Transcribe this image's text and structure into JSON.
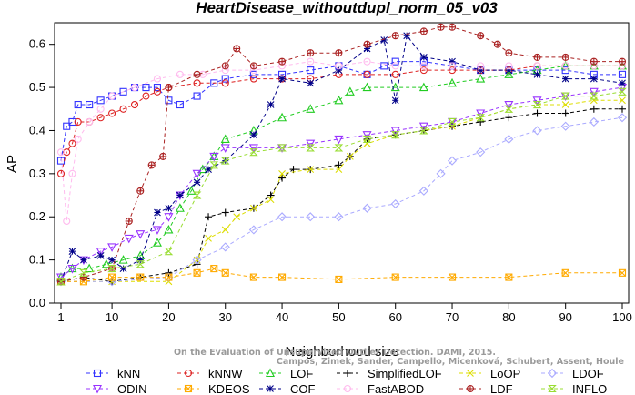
{
  "chart_data": {
    "type": "line",
    "title": "HeartDisease_withoutdupl_norm_05_v03",
    "xlabel": "Neighborhood size",
    "ylabel": "AP",
    "xlim": [
      1,
      100
    ],
    "ylim": [
      0,
      0.65
    ],
    "xticks": [
      1,
      10,
      20,
      30,
      40,
      50,
      60,
      70,
      80,
      90,
      100
    ],
    "yticks": [
      0.0,
      0.1,
      0.2,
      0.3,
      0.4,
      0.5,
      0.6
    ],
    "ytick_labels": [
      "0.0",
      "0.1",
      "0.2",
      "0.3",
      "0.4",
      "0.5",
      "0.6"
    ],
    "grid": false,
    "legend_position": "bottom",
    "watermark_lines": [
      "Campos, Zimek, Sander, Campello, Micenková, Schubert, Assent, Houle",
      "On the Evaluation of Unsupervised Outlier Detection. DAMI, 2015."
    ],
    "series": [
      {
        "name": "kNN",
        "color": "#3333ff",
        "marker": "square",
        "points": [
          [
            1,
            0.33
          ],
          [
            2,
            0.41
          ],
          [
            3,
            0.42
          ],
          [
            4,
            0.46
          ],
          [
            6,
            0.46
          ],
          [
            8,
            0.47
          ],
          [
            10,
            0.48
          ],
          [
            12,
            0.49
          ],
          [
            14,
            0.5
          ],
          [
            16,
            0.5
          ],
          [
            18,
            0.5
          ],
          [
            20,
            0.47
          ],
          [
            22,
            0.46
          ],
          [
            25,
            0.48
          ],
          [
            28,
            0.51
          ],
          [
            30,
            0.52
          ],
          [
            35,
            0.53
          ],
          [
            40,
            0.53
          ],
          [
            45,
            0.54
          ],
          [
            50,
            0.55
          ],
          [
            55,
            0.53
          ],
          [
            58,
            0.55
          ],
          [
            60,
            0.56
          ],
          [
            65,
            0.56
          ],
          [
            70,
            0.55
          ],
          [
            75,
            0.54
          ],
          [
            80,
            0.54
          ],
          [
            85,
            0.54
          ],
          [
            90,
            0.54
          ],
          [
            95,
            0.53
          ],
          [
            100,
            0.53
          ]
        ]
      },
      {
        "name": "kNNW",
        "color": "#dd2222",
        "marker": "circle",
        "points": [
          [
            1,
            0.3
          ],
          [
            2,
            0.35
          ],
          [
            3,
            0.37
          ],
          [
            4,
            0.42
          ],
          [
            6,
            0.42
          ],
          [
            8,
            0.43
          ],
          [
            10,
            0.44
          ],
          [
            12,
            0.45
          ],
          [
            14,
            0.46
          ],
          [
            16,
            0.48
          ],
          [
            18,
            0.49
          ],
          [
            20,
            0.5
          ],
          [
            25,
            0.51
          ],
          [
            30,
            0.51
          ],
          [
            35,
            0.52
          ],
          [
            40,
            0.52
          ],
          [
            45,
            0.52
          ],
          [
            50,
            0.53
          ],
          [
            55,
            0.53
          ],
          [
            60,
            0.53
          ],
          [
            65,
            0.54
          ],
          [
            70,
            0.54
          ],
          [
            75,
            0.54
          ],
          [
            80,
            0.54
          ],
          [
            85,
            0.55
          ],
          [
            90,
            0.55
          ],
          [
            95,
            0.55
          ],
          [
            100,
            0.55
          ]
        ]
      },
      {
        "name": "LOF",
        "color": "#22cc22",
        "marker": "triangle-up",
        "points": [
          [
            1,
            0.06
          ],
          [
            3,
            0.08
          ],
          [
            6,
            0.08
          ],
          [
            9,
            0.09
          ],
          [
            12,
            0.1
          ],
          [
            15,
            0.11
          ],
          [
            18,
            0.14
          ],
          [
            20,
            0.17
          ],
          [
            22,
            0.22
          ],
          [
            24,
            0.26
          ],
          [
            26,
            0.31
          ],
          [
            28,
            0.34
          ],
          [
            30,
            0.38
          ],
          [
            35,
            0.4
          ],
          [
            40,
            0.43
          ],
          [
            45,
            0.45
          ],
          [
            50,
            0.47
          ],
          [
            52,
            0.49
          ],
          [
            55,
            0.5
          ],
          [
            60,
            0.5
          ],
          [
            65,
            0.5
          ],
          [
            70,
            0.51
          ],
          [
            75,
            0.52
          ],
          [
            80,
            0.53
          ],
          [
            85,
            0.54
          ],
          [
            90,
            0.55
          ],
          [
            95,
            0.55
          ],
          [
            100,
            0.55
          ]
        ]
      },
      {
        "name": "SimplifiedLOF",
        "color": "#000000",
        "marker": "plus",
        "points": [
          [
            1,
            0.05
          ],
          [
            5,
            0.06
          ],
          [
            10,
            0.05
          ],
          [
            15,
            0.06
          ],
          [
            20,
            0.07
          ],
          [
            25,
            0.09
          ],
          [
            27,
            0.2
          ],
          [
            30,
            0.21
          ],
          [
            35,
            0.22
          ],
          [
            38,
            0.25
          ],
          [
            40,
            0.29
          ],
          [
            42,
            0.31
          ],
          [
            45,
            0.31
          ],
          [
            50,
            0.32
          ],
          [
            52,
            0.34
          ],
          [
            55,
            0.38
          ],
          [
            60,
            0.39
          ],
          [
            65,
            0.4
          ],
          [
            70,
            0.41
          ],
          [
            75,
            0.42
          ],
          [
            80,
            0.43
          ],
          [
            85,
            0.44
          ],
          [
            90,
            0.44
          ],
          [
            95,
            0.45
          ],
          [
            100,
            0.45
          ]
        ]
      },
      {
        "name": "LoOP",
        "color": "#dddd00",
        "marker": "x",
        "points": [
          [
            1,
            0.05
          ],
          [
            10,
            0.05
          ],
          [
            20,
            0.05
          ],
          [
            25,
            0.1
          ],
          [
            27,
            0.15
          ],
          [
            30,
            0.17
          ],
          [
            32,
            0.2
          ],
          [
            35,
            0.22
          ],
          [
            38,
            0.24
          ],
          [
            40,
            0.3
          ],
          [
            45,
            0.31
          ],
          [
            50,
            0.31
          ],
          [
            52,
            0.34
          ],
          [
            55,
            0.37
          ],
          [
            60,
            0.39
          ],
          [
            65,
            0.4
          ],
          [
            70,
            0.41
          ],
          [
            75,
            0.43
          ],
          [
            80,
            0.45
          ],
          [
            85,
            0.46
          ],
          [
            90,
            0.46
          ],
          [
            95,
            0.47
          ],
          [
            100,
            0.47
          ]
        ]
      },
      {
        "name": "LDOF",
        "color": "#aaaaff",
        "marker": "diamond",
        "points": [
          [
            1,
            0.05
          ],
          [
            10,
            0.05
          ],
          [
            20,
            0.06
          ],
          [
            25,
            0.1
          ],
          [
            30,
            0.13
          ],
          [
            35,
            0.17
          ],
          [
            40,
            0.2
          ],
          [
            45,
            0.2
          ],
          [
            50,
            0.2
          ],
          [
            55,
            0.22
          ],
          [
            60,
            0.23
          ],
          [
            65,
            0.26
          ],
          [
            68,
            0.3
          ],
          [
            70,
            0.33
          ],
          [
            75,
            0.35
          ],
          [
            80,
            0.38
          ],
          [
            85,
            0.4
          ],
          [
            90,
            0.41
          ],
          [
            95,
            0.42
          ],
          [
            100,
            0.43
          ]
        ]
      },
      {
        "name": "ODIN",
        "color": "#9933ff",
        "marker": "triangle-down",
        "points": [
          [
            1,
            0.06
          ],
          [
            3,
            0.08
          ],
          [
            5,
            0.1
          ],
          [
            8,
            0.12
          ],
          [
            10,
            0.13
          ],
          [
            13,
            0.15
          ],
          [
            15,
            0.16
          ],
          [
            18,
            0.17
          ],
          [
            20,
            0.2
          ],
          [
            22,
            0.25
          ],
          [
            25,
            0.3
          ],
          [
            28,
            0.34
          ],
          [
            30,
            0.36
          ],
          [
            35,
            0.36
          ],
          [
            40,
            0.36
          ],
          [
            45,
            0.37
          ],
          [
            50,
            0.38
          ],
          [
            55,
            0.39
          ],
          [
            60,
            0.4
          ],
          [
            65,
            0.41
          ],
          [
            70,
            0.42
          ],
          [
            75,
            0.44
          ],
          [
            80,
            0.46
          ],
          [
            85,
            0.47
          ],
          [
            90,
            0.48
          ],
          [
            95,
            0.49
          ],
          [
            100,
            0.5
          ]
        ]
      },
      {
        "name": "KDEOS",
        "color": "#ffaa00",
        "marker": "square-x",
        "points": [
          [
            1,
            0.05
          ],
          [
            5,
            0.05
          ],
          [
            10,
            0.06
          ],
          [
            15,
            0.06
          ],
          [
            20,
            0.06
          ],
          [
            25,
            0.07
          ],
          [
            28,
            0.08
          ],
          [
            30,
            0.07
          ],
          [
            35,
            0.06
          ],
          [
            40,
            0.06
          ],
          [
            50,
            0.055
          ],
          [
            60,
            0.06
          ],
          [
            70,
            0.06
          ],
          [
            80,
            0.06
          ],
          [
            90,
            0.07
          ],
          [
            100,
            0.07
          ]
        ]
      },
      {
        "name": "COF",
        "color": "#000088",
        "marker": "asterisk",
        "points": [
          [
            1,
            0.05
          ],
          [
            3,
            0.12
          ],
          [
            5,
            0.1
          ],
          [
            8,
            0.11
          ],
          [
            10,
            0.1
          ],
          [
            12,
            0.08
          ],
          [
            15,
            0.1
          ],
          [
            18,
            0.21
          ],
          [
            20,
            0.22
          ],
          [
            22,
            0.25
          ],
          [
            25,
            0.28
          ],
          [
            27,
            0.31
          ],
          [
            30,
            0.33
          ],
          [
            35,
            0.39
          ],
          [
            38,
            0.46
          ],
          [
            40,
            0.52
          ],
          [
            45,
            0.51
          ],
          [
            50,
            0.54
          ],
          [
            55,
            0.59
          ],
          [
            58,
            0.61
          ],
          [
            60,
            0.47
          ],
          [
            62,
            0.62
          ],
          [
            65,
            0.57
          ],
          [
            70,
            0.56
          ],
          [
            75,
            0.54
          ],
          [
            80,
            0.54
          ],
          [
            85,
            0.53
          ],
          [
            90,
            0.52
          ],
          [
            95,
            0.52
          ],
          [
            100,
            0.51
          ]
        ]
      },
      {
        "name": "FastABOD",
        "color": "#ffbbee",
        "marker": "circle-small",
        "points": [
          [
            1,
            0.35
          ],
          [
            2,
            0.19
          ],
          [
            3,
            0.3
          ],
          [
            4,
            0.38
          ],
          [
            6,
            0.42
          ],
          [
            8,
            0.45
          ],
          [
            10,
            0.48
          ],
          [
            14,
            0.5
          ],
          [
            18,
            0.52
          ],
          [
            22,
            0.53
          ],
          [
            26,
            0.53
          ],
          [
            30,
            0.54
          ],
          [
            35,
            0.54
          ],
          [
            40,
            0.55
          ],
          [
            45,
            0.56
          ],
          [
            50,
            0.55
          ],
          [
            55,
            0.56
          ],
          [
            60,
            0.55
          ],
          [
            65,
            0.55
          ],
          [
            70,
            0.55
          ],
          [
            75,
            0.55
          ],
          [
            80,
            0.55
          ],
          [
            85,
            0.55
          ],
          [
            90,
            0.55
          ],
          [
            95,
            0.55
          ],
          [
            100,
            0.55
          ]
        ]
      },
      {
        "name": "LDF",
        "color": "#aa2222",
        "marker": "circle-plus",
        "points": [
          [
            1,
            0.05
          ],
          [
            5,
            0.06
          ],
          [
            10,
            0.08
          ],
          [
            13,
            0.19
          ],
          [
            15,
            0.26
          ],
          [
            17,
            0.32
          ],
          [
            19,
            0.34
          ],
          [
            20,
            0.5
          ],
          [
            25,
            0.53
          ],
          [
            30,
            0.55
          ],
          [
            32,
            0.59
          ],
          [
            35,
            0.55
          ],
          [
            40,
            0.56
          ],
          [
            45,
            0.58
          ],
          [
            50,
            0.58
          ],
          [
            55,
            0.6
          ],
          [
            60,
            0.62
          ],
          [
            65,
            0.63
          ],
          [
            68,
            0.64
          ],
          [
            70,
            0.64
          ],
          [
            75,
            0.62
          ],
          [
            78,
            0.6
          ],
          [
            80,
            0.58
          ],
          [
            85,
            0.57
          ],
          [
            90,
            0.57
          ],
          [
            95,
            0.56
          ],
          [
            100,
            0.56
          ]
        ]
      },
      {
        "name": "INFLO",
        "color": "#99dd33",
        "marker": "hourglass",
        "points": [
          [
            1,
            0.05
          ],
          [
            5,
            0.07
          ],
          [
            10,
            0.08
          ],
          [
            15,
            0.09
          ],
          [
            20,
            0.12
          ],
          [
            25,
            0.25
          ],
          [
            28,
            0.32
          ],
          [
            30,
            0.33
          ],
          [
            35,
            0.35
          ],
          [
            40,
            0.36
          ],
          [
            45,
            0.36
          ],
          [
            50,
            0.36
          ],
          [
            55,
            0.38
          ],
          [
            60,
            0.39
          ],
          [
            65,
            0.4
          ],
          [
            70,
            0.42
          ],
          [
            75,
            0.43
          ],
          [
            80,
            0.45
          ],
          [
            85,
            0.46
          ],
          [
            90,
            0.48
          ],
          [
            95,
            0.48
          ],
          [
            100,
            0.49
          ]
        ]
      }
    ]
  }
}
